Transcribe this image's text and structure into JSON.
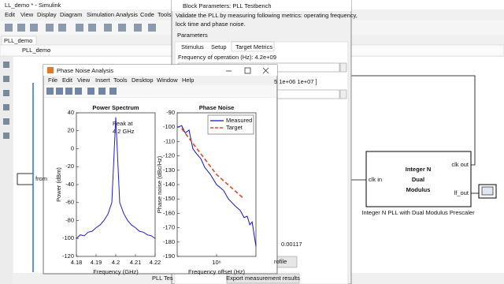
{
  "simulink": {
    "title": "LL_demo * - Simulink",
    "menu": [
      "Edit",
      "View",
      "Display",
      "Diagram",
      "Simulation",
      "Analysis",
      "Code",
      "Tools"
    ],
    "tab": "PLL_demo",
    "breadcrumb": "PLL_demo",
    "from_block": "from",
    "block": {
      "lines": [
        "Integer N",
        "Dual",
        "Modulus"
      ],
      "in_port": "clk in",
      "out_ports": [
        "clk out",
        "lf_out"
      ],
      "caption": "Integer N PLL with Dual Modulus Prescaler"
    },
    "testbench_label": "PLL Tes"
  },
  "dialog": {
    "title": "Block Parameters: PLL Testbench",
    "description": [
      "Validate the PLL by measuring following metrics: operating frequency,",
      "lock time and phase noise."
    ],
    "section": "Parameters",
    "tabs": [
      "Stimulus",
      "Setup",
      "Target Metrics"
    ],
    "frequency_label": "Frequency of operation (Hz): 4.2e+09",
    "offset_text": "5 1e+06 1e+07 ]",
    "lock_time_text": "0.00117",
    "profile_button": "rofile",
    "export_button": "Export measurement results"
  },
  "figure": {
    "title": "Phase Noise Analysis",
    "menu": [
      "File",
      "Edit",
      "View",
      "Insert",
      "Tools",
      "Desktop",
      "Window",
      "Help"
    ]
  },
  "chart_data": [
    {
      "type": "line",
      "title": "Power Spectrum",
      "xlabel": "Frequency (GHz)",
      "ylabel": "Power (dBm)",
      "x": [
        4.18,
        4.182,
        4.184,
        4.186,
        4.188,
        4.19,
        4.192,
        4.194,
        4.196,
        4.198,
        4.2,
        4.202,
        4.204,
        4.206,
        4.208,
        4.21,
        4.212,
        4.214,
        4.216,
        4.218,
        4.22
      ],
      "series": [
        {
          "color": "#1f1fd6",
          "values": [
            -100,
            -96,
            -97,
            -93,
            -92,
            -88,
            -85,
            -80,
            -73,
            -60,
            35,
            -60,
            -72,
            -80,
            -85,
            -88,
            -92,
            -93,
            -96,
            -97,
            -100
          ]
        }
      ],
      "annotation": [
        "Peak at",
        "4.2 GHz"
      ],
      "xlim": [
        4.18,
        4.22
      ],
      "xticks": [
        4.18,
        4.19,
        4.2,
        4.21,
        4.22
      ],
      "ylim": [
        -120,
        40
      ],
      "yticks": [
        -120,
        -100,
        -80,
        -60,
        -40,
        -20,
        0,
        20,
        40
      ],
      "grid": false
    },
    {
      "type": "line",
      "title": "Phase Noise",
      "xlabel": "Frequency offset (Hz)",
      "ylabel": "Phase noise (dBc/Hz)",
      "xscale": "log",
      "legend": "northeast",
      "grid": false,
      "series": [
        {
          "name": "Measured",
          "color": "#1010c8",
          "x": [
            100000,
            130000,
            160000,
            200000,
            250000,
            300000,
            400000,
            500000,
            700000,
            1000000,
            1500000,
            2000000,
            3000000,
            4000000,
            5000000,
            6000000,
            7000000,
            8000000,
            9000000,
            10000000
          ],
          "values": [
            -100,
            -99,
            -104,
            -102,
            -115,
            -118,
            -122,
            -128,
            -133,
            -140,
            -144,
            -150,
            -155,
            -158,
            -163,
            -162,
            -168,
            -166,
            -175,
            -183
          ]
        },
        {
          "name": "Target",
          "color": "#e8452a",
          "dash": true,
          "x": [
            130000,
            1000000,
            5000000
          ],
          "values": [
            -101,
            -133,
            -150
          ]
        }
      ],
      "xlim": [
        100000,
        10000000
      ],
      "xticks": [
        {
          "value": 1000000,
          "label": "10⁶"
        }
      ],
      "ylim": [
        -190,
        -90
      ],
      "yticks": [
        -90,
        -100,
        -110,
        -120,
        -130,
        -140,
        -150,
        -160,
        -170,
        -180,
        -190
      ]
    }
  ]
}
